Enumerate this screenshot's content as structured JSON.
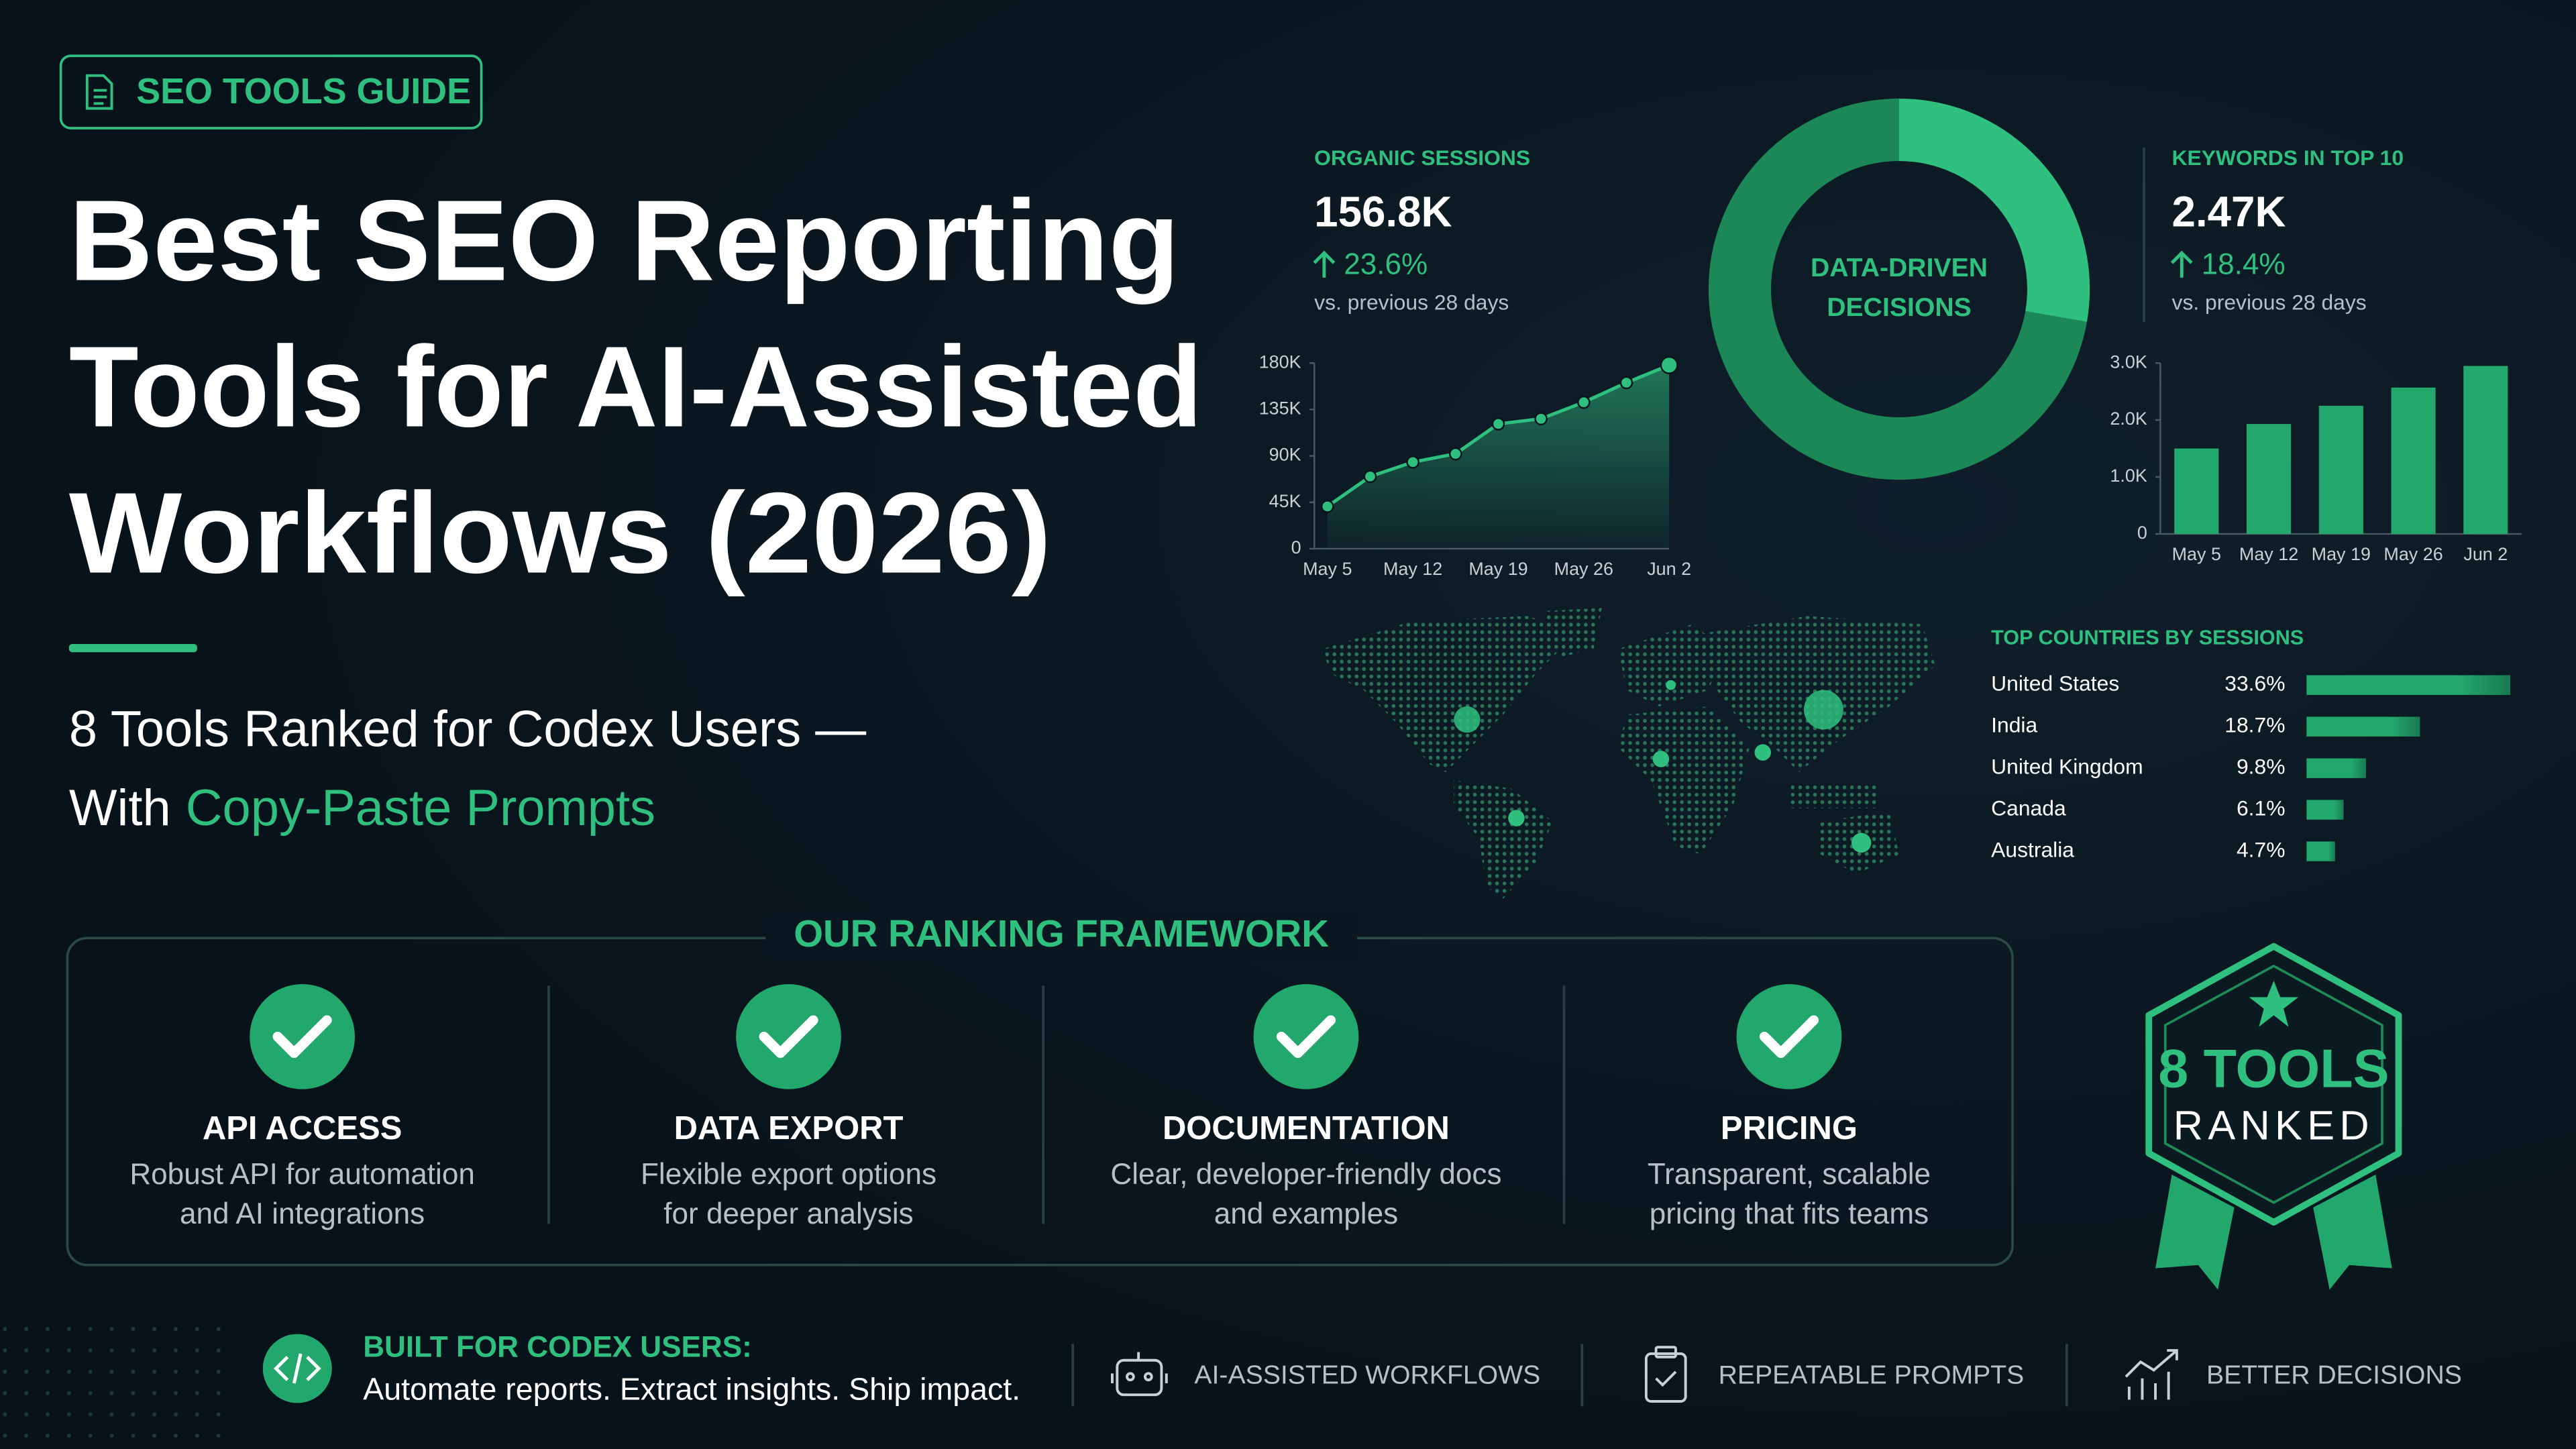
{
  "tag": "SEO TOOLS GUIDE",
  "title_lines": [
    "Best SEO Reporting",
    "Tools for AI-Assisted",
    "Workflows (2026)"
  ],
  "subtitle": {
    "line1": "8 Tools Ranked for Codex Users —",
    "line2_prefix": "With",
    "line2_highlight": "Copy-Paste Prompts"
  },
  "kpis": [
    {
      "label": "ORGANIC SESSIONS",
      "value": "156.8K",
      "change": "23.6%",
      "note": "vs. previous 28 days"
    },
    {
      "label": "KEYWORDS IN TOP 10",
      "value": "2.47K",
      "change": "18.4%",
      "note": "vs. previous 28 days"
    }
  ],
  "donut": {
    "lines": [
      "DATA-DRIVEN",
      "DECISIONS"
    ]
  },
  "chart_data": [
    {
      "type": "line",
      "color": "#2fc07f",
      "categories": [
        "May 5",
        null,
        "May 12",
        null,
        "May 19",
        null,
        "May 26",
        null,
        "Jun 2"
      ],
      "values": [
        41000,
        70000,
        84000,
        92000,
        121000,
        126000,
        142000,
        161000,
        178000
      ],
      "ylim": [
        0,
        180000
      ],
      "yticks": [
        0,
        {
          "value": 45000,
          "label": "45K"
        },
        {
          "value": 90000,
          "label": "90K"
        },
        {
          "value": 135000,
          "label": "135K"
        },
        {
          "value": 180000,
          "label": "180K"
        }
      ],
      "grid": false
    },
    {
      "type": "bar",
      "color": "#22a86c",
      "categories": [
        "May 5",
        "May 12",
        "May 19",
        "May 26",
        "Jun 2"
      ],
      "values": [
        1500,
        1930,
        2250,
        2570,
        2950
      ],
      "ylim": [
        0,
        3000
      ],
      "yticks": [
        0,
        {
          "value": 1000,
          "label": "1.0K"
        },
        {
          "value": 2000,
          "label": "2.0K"
        },
        {
          "value": 3000,
          "label": "3.0K"
        }
      ],
      "grid": false
    },
    {
      "type": "hbar",
      "title": "TOP COUNTRIES BY SESSIONS",
      "color": "#22a86c",
      "categories": [
        "United States",
        "India",
        "United Kingdom",
        "Canada",
        "Australia"
      ],
      "values": [
        33.6,
        18.7,
        9.8,
        6.1,
        4.7
      ],
      "value_labels": [
        "33.6%",
        "18.7%",
        "9.8%",
        "6.1%",
        "4.7%"
      ]
    }
  ],
  "framework": {
    "heading": "OUR RANKING FRAMEWORK",
    "items": [
      {
        "title": "API ACCESS",
        "desc": [
          "Robust API for automation",
          "and AI integrations"
        ]
      },
      {
        "title": "DATA EXPORT",
        "desc": [
          "Flexible export options",
          "for deeper analysis"
        ]
      },
      {
        "title": "DOCUMENTATION",
        "desc": [
          "Clear, developer-friendly docs",
          "and examples"
        ]
      },
      {
        "title": "PRICING",
        "desc": [
          "Transparent, scalable",
          "pricing that fits teams"
        ]
      }
    ]
  },
  "badge": {
    "line1": "8 TOOLS",
    "line2": "RANKED"
  },
  "footer": {
    "lead_title": "BUILT FOR CODEX USERS:",
    "lead_text": "Automate reports. Extract insights. Ship impact.",
    "features": [
      "AI-ASSISTED WORKFLOWS",
      "REPEATABLE PROMPTS",
      "BETTER DECISIONS"
    ]
  }
}
